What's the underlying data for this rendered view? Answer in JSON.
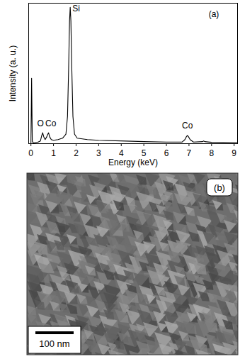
{
  "chart_data": {
    "type": "line",
    "x_label": "Energy (keV)",
    "y_label": "Intensity (a. u.)",
    "xlim": [
      -0.1,
      9.15
    ],
    "xticks": [
      0,
      1,
      2,
      3,
      4,
      5,
      6,
      7,
      8,
      9
    ],
    "ylim": [
      0,
      103
    ],
    "tick_labels": "x",
    "color": "#000000",
    "x": [
      -0.1,
      0,
      0.03,
      0.06,
      0.1,
      0.3,
      0.42,
      0.48,
      0.52,
      0.57,
      0.63,
      0.7,
      0.75,
      0.78,
      0.83,
      0.9,
      1.0,
      1.2,
      1.4,
      1.55,
      1.62,
      1.67,
      1.71,
      1.74,
      1.77,
      1.81,
      1.86,
      1.93,
      2.05,
      2.5,
      3,
      4,
      5,
      6,
      6.7,
      6.82,
      6.88,
      6.93,
      6.98,
      7.05,
      7.2,
      7.6,
      7.65,
      7.7,
      8,
      9,
      9.15
    ],
    "values": [
      0,
      0,
      48,
      2,
      0.5,
      1,
      2,
      6,
      8,
      5,
      3,
      5,
      7,
      8,
      5,
      3,
      2.5,
      3,
      4,
      7,
      20,
      55,
      90,
      100,
      90,
      55,
      20,
      7,
      4,
      3,
      2.5,
      2,
      1.5,
      1.2,
      1.2,
      3,
      5,
      6,
      5,
      3,
      1.2,
      1.5,
      2,
      1.5,
      1,
      0.8,
      0.8
    ],
    "annotations": [
      {
        "text": "Si",
        "x": 2.0,
        "y": 97
      },
      {
        "text": "O",
        "x": 0.42,
        "y": 13
      },
      {
        "text": "Co",
        "x": 0.88,
        "y": 13
      },
      {
        "text": "Co",
        "x": 6.93,
        "y": 11
      },
      {
        "text": "(a)",
        "x": 8.1,
        "y": 93
      }
    ]
  },
  "micrograph": {
    "label": "(b)",
    "scale_bar": "100 nm"
  }
}
